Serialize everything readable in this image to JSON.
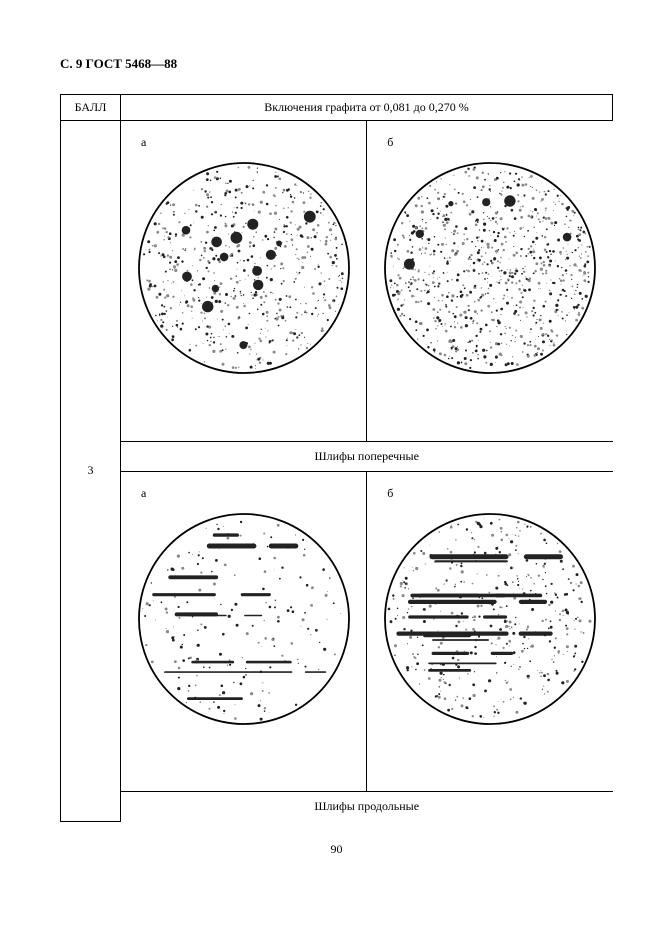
{
  "page_header": "С. 9 ГОСТ 5468—88",
  "table": {
    "col_header": "БАЛЛ",
    "row_header": "Включения графита от 0,081 до 0,270 %",
    "score": "3",
    "labels": {
      "a": "а",
      "b": "б"
    },
    "captions": {
      "transverse": "Шлифы поперечные",
      "longitudinal": "Шлифы продольные"
    }
  },
  "page_number": "90",
  "diagram": {
    "circle_radius": 105,
    "stroke": "#000000",
    "stroke_width": 1.8,
    "background": "#ffffff",
    "speckle_color": "#222222",
    "speckle_light": "#888888",
    "transverse": {
      "a": {
        "dot_count": 600,
        "big_spots": 14,
        "seed": 11
      },
      "b": {
        "dot_count": 850,
        "big_spots": 6,
        "seed": 23
      }
    },
    "longitudinal": {
      "a": {
        "dot_count": 180,
        "streaks": 9,
        "seed": 37
      },
      "b": {
        "dot_count": 420,
        "streaks": 12,
        "seed": 53
      }
    }
  }
}
